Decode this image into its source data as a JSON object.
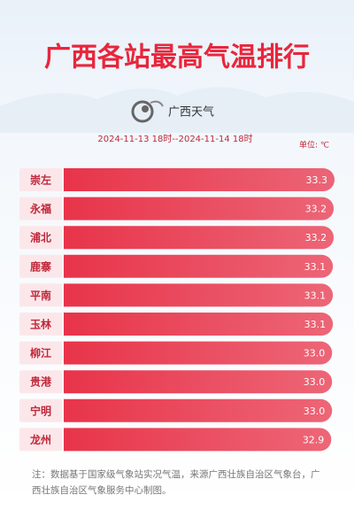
{
  "chart_data": {
    "type": "bar",
    "orientation": "horizontal",
    "title": "广西各站最高气温排行",
    "logo_text": "广西天气",
    "subtitle": "2024-11-13 18时--2024-11-14 18时",
    "unit": "单位: ℃",
    "categories": [
      "崇左",
      "永福",
      "浦北",
      "鹿寨",
      "平南",
      "玉林",
      "柳江",
      "贵港",
      "宁明",
      "龙州"
    ],
    "values": [
      33.3,
      33.2,
      33.2,
      33.1,
      33.1,
      33.1,
      33,
      33,
      33,
      32.9
    ],
    "value_labels": [
      "33.3",
      "33.2",
      "33.2",
      "33.1",
      "33.1",
      "33.1",
      "33.0",
      "33.0",
      "33.0",
      "32.9"
    ],
    "color": "#e8344a",
    "note": "注：数据基于国家级气象站实况气温，来源广西壮族自治区气象台，广西壮族自治区气象服务中心制图。"
  }
}
